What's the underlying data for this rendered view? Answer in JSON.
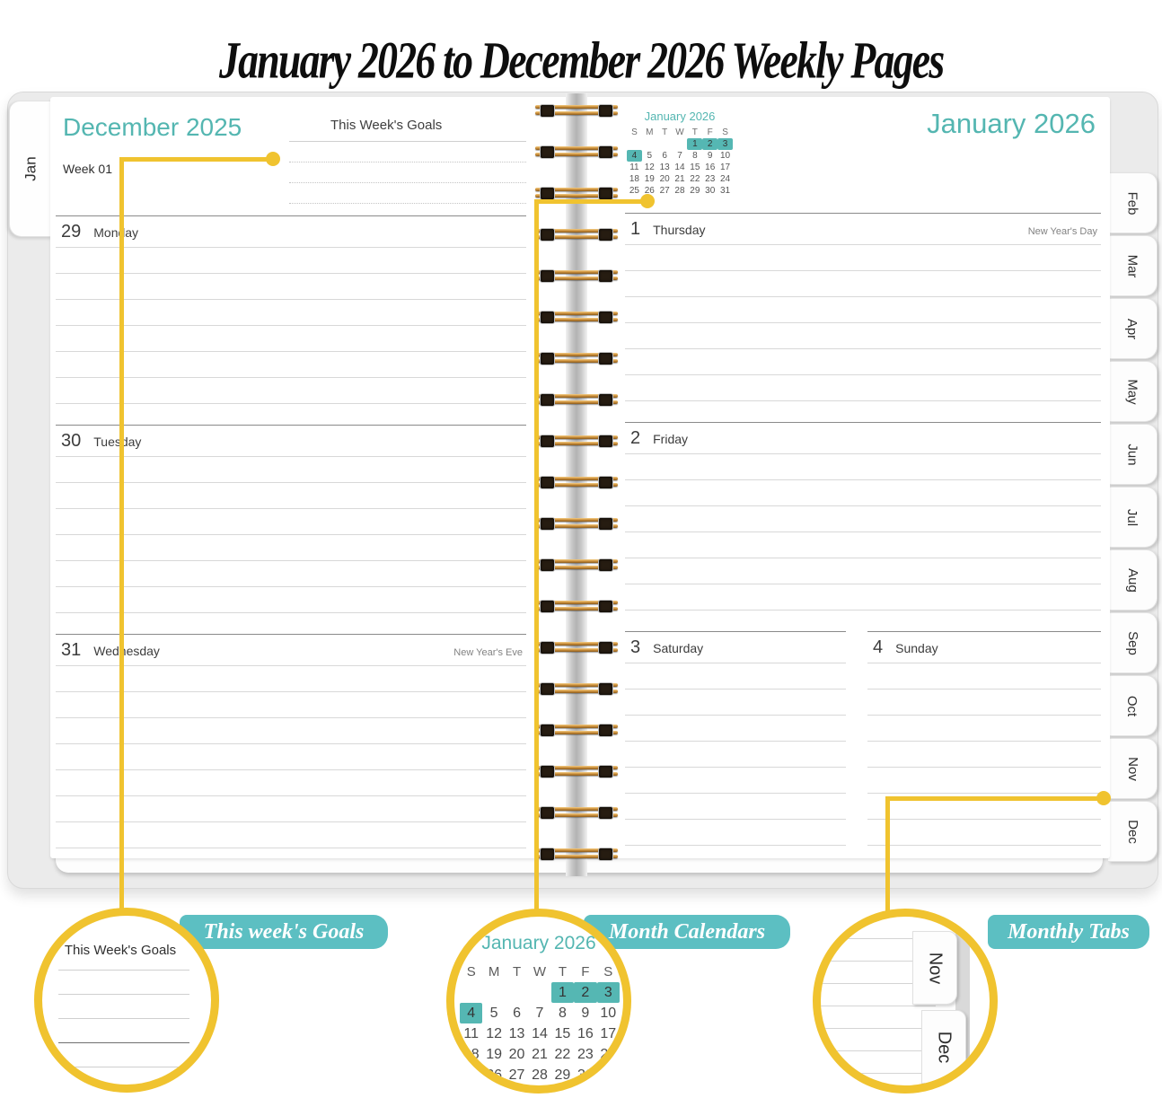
{
  "title": "January 2026 to December 2026 Weekly Pages",
  "colors": {
    "teal_header": "#54b6b1",
    "teal_highlight": "#55b7b3",
    "badge_teal": "#5cbfc2",
    "callout_yellow": "#f0c32f",
    "wire_gold": "#d09440"
  },
  "left_tab_label": "Jan",
  "left_page": {
    "month_header": "December 2025",
    "goals_title": "This Week's Goals",
    "week_label": "Week 01",
    "days": [
      {
        "num": "29",
        "name": "Monday",
        "holiday": ""
      },
      {
        "num": "30",
        "name": "Tuesday",
        "holiday": ""
      },
      {
        "num": "31",
        "name": "Wednesday",
        "holiday": "New Year's Eve"
      }
    ]
  },
  "right_page": {
    "month_header": "January 2026",
    "mini_calendar": {
      "title": "January 2026",
      "weekdays": [
        "S",
        "M",
        "T",
        "W",
        "T",
        "F",
        "S"
      ],
      "cells": [
        "",
        "",
        "",
        "",
        "1",
        "2",
        "3",
        "4",
        "5",
        "6",
        "7",
        "8",
        "9",
        "10",
        "11",
        "12",
        "13",
        "14",
        "15",
        "16",
        "17",
        "18",
        "19",
        "20",
        "21",
        "22",
        "23",
        "24",
        "25",
        "26",
        "27",
        "28",
        "29",
        "30",
        "31"
      ],
      "highlighted": [
        "1",
        "2",
        "3",
        "4"
      ]
    },
    "days": [
      {
        "num": "1",
        "name": "Thursday",
        "holiday": "New Year's Day"
      },
      {
        "num": "2",
        "name": "Friday",
        "holiday": ""
      },
      {
        "num": "3",
        "name": "Saturday",
        "holiday": ""
      },
      {
        "num": "4",
        "name": "Sunday",
        "holiday": ""
      }
    ]
  },
  "month_tabs": [
    "Feb",
    "Mar",
    "Apr",
    "May",
    "Jun",
    "Jul",
    "Aug",
    "Sep",
    "Oct",
    "Nov",
    "Dec"
  ],
  "callouts": {
    "goals_badge": "This week's Goals",
    "calendar_badge": "Month Calendars",
    "tabs_badge": "Monthly Tabs",
    "goals_circle_title": "This Week's Goals",
    "zoom_tabs": [
      "Nov",
      "Dec"
    ]
  }
}
